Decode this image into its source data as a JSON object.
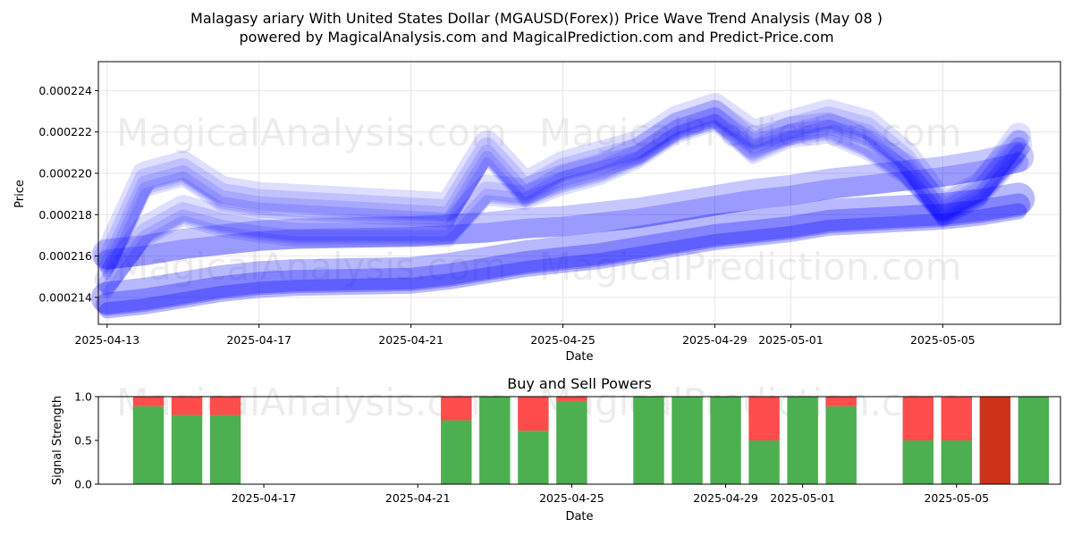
{
  "title_line1": "Malagasy ariary With United States Dollar (MGAUSD(Forex)) Price Wave Trend Analysis (May 08 )",
  "title_line2": "powered by MagicalAnalysis.com and MagicalPrediction.com and Predict-Price.com",
  "watermarks": [
    "MagicalAnalysis.com",
    "MagicalPrediction.com"
  ],
  "colors": {
    "wave": "#0000ff",
    "buy": "#4caf50",
    "sell": "#ff4c4c",
    "sell_dark": "#cc3319"
  },
  "chart_data": [
    {
      "type": "area",
      "xlabel": "Date",
      "ylabel": "Price",
      "ylim": [
        0.0002127,
        0.0002254
      ],
      "x_ticks": [
        "2025-04-13",
        "2025-04-17",
        "2025-04-21",
        "2025-04-25",
        "2025-04-29",
        "2025-05-01",
        "2025-05-05"
      ],
      "y_ticks": [
        "0.000214",
        "0.000216",
        "0.000218",
        "0.000220",
        "0.000222",
        "0.000224"
      ],
      "grid": true,
      "x": [
        "2025-04-13",
        "2025-04-14",
        "2025-04-15",
        "2025-04-16",
        "2025-04-17",
        "2025-04-18",
        "2025-04-21",
        "2025-04-22",
        "2025-04-23",
        "2025-04-24",
        "2025-04-25",
        "2025-04-26",
        "2025-04-27",
        "2025-04-28",
        "2025-04-29",
        "2025-04-30",
        "2025-05-01",
        "2025-05-02",
        "2025-05-03",
        "2025-05-04",
        "2025-05-05",
        "2025-05-06",
        "2025-05-07"
      ],
      "series": [
        {
          "values": [
            0.0002155,
            0.0002195,
            0.00022,
            0.0002188,
            0.0002185,
            0.0002184,
            0.0002181,
            0.000218,
            0.000221,
            0.000219,
            0.00022,
            0.0002205,
            0.000221,
            0.0002222,
            0.0002228,
            0.0002215,
            0.000222,
            0.0002225,
            0.000222,
            0.0002205,
            0.000218,
            0.000219,
            0.000221
          ]
        },
        {
          "values": [
            0.0002145,
            0.000217,
            0.000218,
            0.0002175,
            0.0002172,
            0.000217,
            0.000217,
            0.000217,
            0.000219,
            0.0002188,
            0.0002195,
            0.00022,
            0.0002208,
            0.000222,
            0.0002226,
            0.000221,
            0.0002218,
            0.000222,
            0.0002212,
            0.00022,
            0.000218,
            0.000219,
            0.0002215
          ]
        },
        {
          "values": [
            0.000216,
            0.0002162,
            0.0002165,
            0.0002167,
            0.0002169,
            0.000217,
            0.0002171,
            0.0002172,
            0.0002173,
            0.0002175,
            0.0002176,
            0.0002178,
            0.000218,
            0.0002183,
            0.0002186,
            0.0002189,
            0.0002191,
            0.0002194,
            0.0002196,
            0.0002198,
            0.00022,
            0.0002203,
            0.0002207
          ]
        },
        {
          "values": [
            0.0002138,
            0.000214,
            0.0002143,
            0.0002146,
            0.0002148,
            0.0002149,
            0.000215,
            0.0002152,
            0.0002155,
            0.0002158,
            0.000216,
            0.0002162,
            0.0002165,
            0.0002168,
            0.0002171,
            0.0002173,
            0.0002175,
            0.0002178,
            0.0002179,
            0.000218,
            0.0002181,
            0.0002183,
            0.0002186
          ]
        }
      ]
    },
    {
      "type": "bar",
      "title": "Buy and Sell Powers",
      "xlabel": "Date",
      "ylabel": "Signal Strength",
      "ylim": [
        0,
        1
      ],
      "y_ticks": [
        "0.0",
        "0.5",
        "1.0"
      ],
      "x_ticks": [
        "2025-04-17",
        "2025-04-21",
        "2025-04-25",
        "2025-04-29",
        "2025-05-01",
        "2025-05-05"
      ],
      "categories": [
        "2025-04-14",
        "2025-04-15",
        "2025-04-16",
        "2025-04-22",
        "2025-04-23",
        "2025-04-24",
        "2025-04-25",
        "2025-04-27",
        "2025-04-28",
        "2025-04-29",
        "2025-04-30",
        "2025-05-01",
        "2025-05-02",
        "2025-05-04",
        "2025-05-05",
        "2025-05-06",
        "2025-05-07"
      ],
      "buy": [
        0.89,
        0.79,
        0.79,
        0.73,
        1.0,
        0.61,
        0.95,
        1.0,
        1.0,
        1.0,
        0.5,
        1.0,
        0.89,
        0.5,
        0.5,
        0.0,
        1.0
      ],
      "sell": [
        0.11,
        0.21,
        0.21,
        0.27,
        0.0,
        0.39,
        0.05,
        0.0,
        0.0,
        0.0,
        0.5,
        0.0,
        0.11,
        0.5,
        0.5,
        1.0,
        0.0
      ]
    }
  ]
}
